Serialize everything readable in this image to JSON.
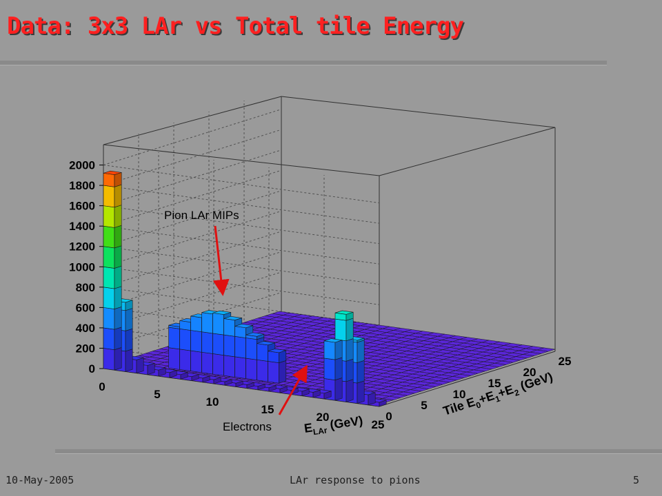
{
  "slide": {
    "title": "Data: 3x3 LAr vs Total tile Energy",
    "footer_left": "10-May-2005",
    "footer_center": "LAr response to pions",
    "footer_right": "5"
  },
  "chart_data": {
    "type": "lego3d",
    "zticks": [
      "0",
      "200",
      "400",
      "600",
      "800",
      "1000",
      "1200",
      "1400",
      "1600",
      "1800",
      "2000"
    ],
    "xticks": [
      "0",
      "5",
      "10",
      "15",
      "20",
      "25"
    ],
    "yticks": [
      "0",
      "5",
      "10",
      "15",
      "20",
      "25"
    ],
    "zlim": [
      0,
      2200
    ],
    "xlim": [
      0,
      25
    ],
    "ylim": [
      0,
      25
    ],
    "grid": true,
    "front_row_values": [
      1920,
      680,
      130,
      90,
      60,
      50,
      45,
      40,
      40,
      40,
      35,
      35,
      35,
      35,
      35,
      40,
      40,
      45,
      50,
      55,
      570,
      860,
      620,
      100,
      40
    ],
    "mip_ridge_values": [
      420,
      480,
      540,
      590,
      600,
      560,
      500,
      430,
      360,
      300
    ],
    "annotations": [
      {
        "text": "Pion LAr MIPs"
      },
      {
        "text": "Electrons"
      }
    ]
  }
}
